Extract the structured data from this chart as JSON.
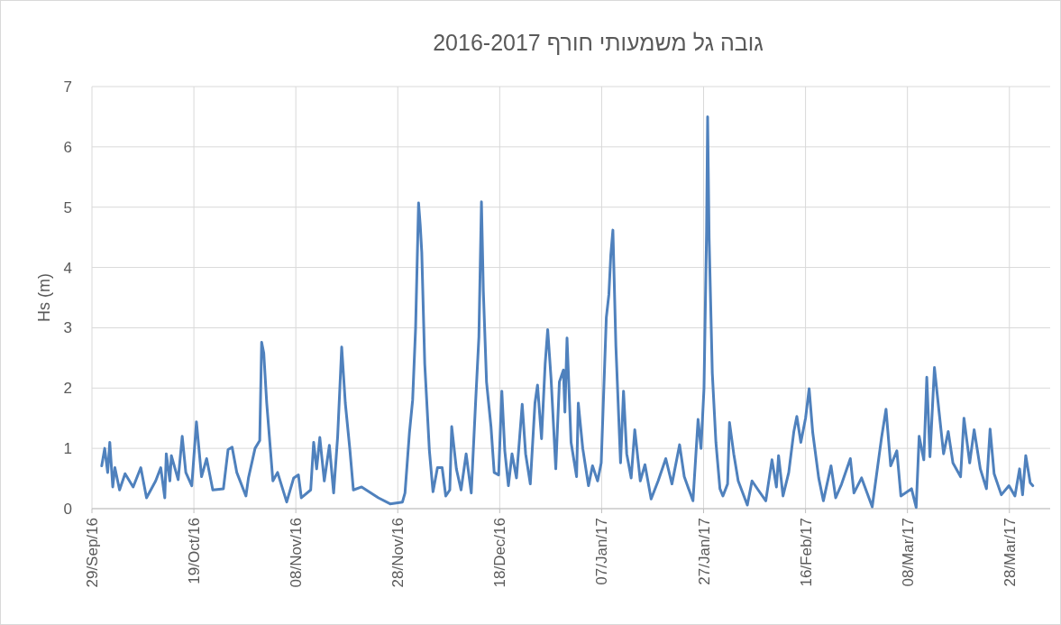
{
  "chart_data": {
    "type": "line",
    "title": "גובה גל משמעותי חורף 2016-2017",
    "ylabel": "Hs (m)",
    "x": [
      "2016-09-30T22:00",
      "2016-10-01T12:00",
      "2016-10-02T02:00",
      "2016-10-02T12:00",
      "2016-10-03T02:00",
      "2016-10-03T12:00",
      "2016-10-04T10:00",
      "2016-10-05T12:00",
      "2016-10-07T02:00",
      "2016-10-08T14:00",
      "2016-10-09T17:00",
      "2016-10-11T12:00",
      "2016-10-12T12:00",
      "2016-10-13T07:00",
      "2016-10-13T14:00",
      "2016-10-14T07:00",
      "2016-10-14T14:00",
      "2016-10-15T22:00",
      "2016-10-16T17:00",
      "2016-10-17T10:00",
      "2016-10-18T14:00",
      "2016-10-19T12:00",
      "2016-10-20T12:00",
      "2016-10-21T12:00",
      "2016-10-22T17:00",
      "2016-10-24T19:00",
      "2016-10-25T17:00",
      "2016-10-26T12:00",
      "2016-10-27T10:00",
      "2016-10-29T05:00",
      "2016-10-29T17:00",
      "2016-10-31T00:00",
      "2016-10-31T22:00",
      "2016-11-01T07:00",
      "2016-11-01T17:00",
      "2016-11-02T07:00",
      "2016-11-03T12:00",
      "2016-11-04T10:00",
      "2016-11-06T05:00",
      "2016-11-07T14:00",
      "2016-11-08T12:00",
      "2016-11-09T02:00",
      "2016-11-10T22:00",
      "2016-11-11T12:00",
      "2016-11-12T02:00",
      "2016-11-12T17:00",
      "2016-11-13T14:00",
      "2016-11-14T14:00",
      "2016-11-15T10:00",
      "2016-11-16T05:00",
      "2016-11-17T00:00",
      "2016-11-17T17:00",
      "2016-11-18T14:00",
      "2016-11-19T07:00",
      "2016-11-20T22:00",
      "2016-11-24T05:00",
      "2016-11-26T12:00",
      "2016-11-28T22:00",
      "2016-11-29T10:00",
      "2016-11-30T07:00",
      "2016-11-30T22:00",
      "2016-12-01T12:00",
      "2016-12-02T02:00",
      "2016-12-02T10:00",
      "2016-12-02T17:00",
      "2016-12-03T07:00",
      "2016-12-04T05:00",
      "2016-12-04T22:00",
      "2016-12-05T19:00",
      "2016-12-06T17:00",
      "2016-12-07T10:00",
      "2016-12-08T05:00",
      "2016-12-08T14:00",
      "2016-12-09T12:00",
      "2016-12-10T10:00",
      "2016-12-11T10:00",
      "2016-12-12T10:00",
      "2016-12-13T07:00",
      "2016-12-13T22:00",
      "2016-12-14T10:00",
      "2016-12-14T19:00",
      "2016-12-15T10:00",
      "2016-12-16T07:00",
      "2016-12-16T22:00",
      "2016-12-17T19:00",
      "2016-12-18T10:00",
      "2016-12-19T00:00",
      "2016-12-19T17:00",
      "2016-12-20T10:00",
      "2016-12-21T07:00",
      "2016-12-22T10:00",
      "2016-12-23T02:00",
      "2016-12-24T00:00",
      "2016-12-24T22:00",
      "2016-12-25T10:00",
      "2016-12-26T05:00",
      "2016-12-26T22:00",
      "2016-12-27T10:00",
      "2016-12-28T02:00",
      "2016-12-29T00:00",
      "2016-12-29T17:00",
      "2016-12-30T12:00",
      "2016-12-30T19:00",
      "2016-12-31T05:00",
      "2017-01-01T00:00",
      "2017-01-02T02:00",
      "2017-01-02T10:00",
      "2017-01-03T07:00",
      "2017-01-04T10:00",
      "2017-01-05T05:00",
      "2017-01-06T05:00",
      "2017-01-06T22:00",
      "2017-01-07T22:00",
      "2017-01-08T10:00",
      "2017-01-08T19:00",
      "2017-01-09T05:00",
      "2017-01-09T19:00",
      "2017-01-10T17:00",
      "2017-01-11T07:00",
      "2017-01-11T22:00",
      "2017-01-12T19:00",
      "2017-01-13T12:00",
      "2017-01-14T14:00",
      "2017-01-15T12:00",
      "2017-01-16T17:00",
      "2017-01-18T02:00",
      "2017-01-19T14:00",
      "2017-01-20T19:00",
      "2017-01-22T07:00",
      "2017-01-23T05:00",
      "2017-01-24T22:00",
      "2017-01-25T22:00",
      "2017-01-26T12:00",
      "2017-01-27T02:00",
      "2017-01-27T14:00",
      "2017-01-27T19:00",
      "2017-01-28T02:00",
      "2017-01-28T17:00",
      "2017-01-29T10:00",
      "2017-01-30T05:00",
      "2017-01-30T19:00",
      "2017-01-31T17:00",
      "2017-02-01T02:00",
      "2017-02-01T22:00",
      "2017-02-02T19:00",
      "2017-02-04T14:00",
      "2017-02-05T12:00",
      "2017-02-06T17:00",
      "2017-02-08T05:00",
      "2017-02-09T10:00",
      "2017-02-10T07:00",
      "2017-02-10T17:00",
      "2017-02-11T14:00",
      "2017-02-12T17:00",
      "2017-02-13T17:00",
      "2017-02-14T07:00",
      "2017-02-15T02:00",
      "2017-02-16T00:00",
      "2017-02-16T17:00",
      "2017-02-17T10:00",
      "2017-02-18T14:00",
      "2017-02-19T12:00",
      "2017-02-21T00:00",
      "2017-02-21T22:00",
      "2017-02-23T02:00",
      "2017-02-24T19:00",
      "2017-02-25T12:00",
      "2017-02-27T00:00",
      "2017-03-01T02:00",
      "2017-03-02T22:00",
      "2017-03-03T19:00",
      "2017-03-04T17:00",
      "2017-03-05T22:00",
      "2017-03-06T17:00",
      "2017-03-08T19:00",
      "2017-03-09T17:00",
      "2017-03-10T07:00",
      "2017-03-11T05:00",
      "2017-03-11T19:00",
      "2017-03-12T10:00",
      "2017-03-13T07:00",
      "2017-03-14T05:00",
      "2017-03-15T02:00",
      "2017-03-16T00:00",
      "2017-03-16T22:00",
      "2017-03-18T10:00",
      "2017-03-19T02:00",
      "2017-03-20T05:00",
      "2017-03-21T02:00",
      "2017-03-22T07:00",
      "2017-03-23T12:00",
      "2017-03-24T05:00",
      "2017-03-25T00:00",
      "2017-03-26T10:00",
      "2017-03-27T22:00",
      "2017-03-29T02:00",
      "2017-03-30T00:00",
      "2017-03-30T14:00",
      "2017-03-31T05:00",
      "2017-04-01T02:00",
      "2017-04-01T14:00"
    ],
    "series": [
      {
        "color": "#4f81bd",
        "values": [
          0.71,
          1.0,
          0.6,
          1.1,
          0.36,
          0.68,
          0.31,
          0.58,
          0.36,
          0.68,
          0.18,
          0.46,
          0.68,
          0.18,
          0.91,
          0.46,
          0.88,
          0.48,
          1.2,
          0.6,
          0.38,
          1.44,
          0.53,
          0.83,
          0.31,
          0.33,
          0.98,
          1.02,
          0.6,
          0.21,
          0.51,
          1.0,
          1.13,
          2.76,
          2.58,
          1.75,
          0.46,
          0.6,
          0.11,
          0.51,
          0.56,
          0.18,
          0.31,
          1.1,
          0.66,
          1.18,
          0.46,
          1.05,
          0.26,
          1.2,
          2.68,
          1.75,
          1.0,
          0.31,
          0.36,
          0.18,
          0.08,
          0.11,
          0.26,
          1.26,
          1.8,
          3.0,
          5.07,
          4.69,
          4.25,
          2.4,
          0.96,
          0.28,
          0.68,
          0.68,
          0.21,
          0.31,
          1.36,
          0.66,
          0.31,
          0.91,
          0.26,
          1.8,
          2.85,
          5.09,
          3.6,
          2.1,
          1.36,
          0.6,
          0.56,
          1.95,
          0.96,
          0.38,
          0.91,
          0.51,
          1.73,
          0.91,
          0.41,
          1.75,
          2.05,
          1.16,
          2.4,
          2.97,
          2.15,
          0.66,
          2.1,
          2.3,
          1.6,
          2.83,
          1.1,
          0.53,
          1.75,
          1.0,
          0.38,
          0.71,
          0.46,
          0.76,
          3.17,
          3.55,
          4.2,
          4.62,
          2.7,
          0.76,
          1.95,
          0.91,
          0.51,
          1.31,
          0.46,
          0.73,
          0.16,
          0.46,
          0.83,
          0.41,
          1.06,
          0.53,
          0.13,
          1.48,
          1.0,
          2.0,
          4.59,
          6.5,
          4.49,
          2.25,
          1.1,
          0.33,
          0.21,
          0.41,
          1.43,
          0.91,
          0.46,
          0.06,
          0.46,
          0.31,
          0.13,
          0.81,
          0.36,
          0.88,
          0.21,
          0.6,
          1.28,
          1.53,
          1.1,
          1.5,
          1.99,
          1.26,
          0.51,
          0.13,
          0.71,
          0.18,
          0.41,
          0.83,
          0.26,
          0.51,
          0.03,
          1.18,
          1.65,
          0.71,
          0.96,
          0.21,
          0.33,
          0.02,
          1.2,
          0.81,
          2.18,
          0.86,
          2.34,
          1.6,
          0.91,
          1.28,
          0.76,
          0.53,
          1.5,
          0.76,
          1.31,
          0.66,
          0.33,
          1.32,
          0.58,
          0.23,
          0.38,
          0.21,
          0.66,
          0.23,
          0.88,
          0.43,
          0.38
        ]
      }
    ],
    "xlim": [
      "2016-09-29",
      "2017-04-05"
    ],
    "xticks": [
      {
        "value": "2016-09-29",
        "label": "29/Sep/16"
      },
      {
        "value": "2016-10-19",
        "label": "19/Oct/16"
      },
      {
        "value": "2016-11-08",
        "label": "08/Nov/16"
      },
      {
        "value": "2016-11-28",
        "label": "28/Nov/16"
      },
      {
        "value": "2016-12-18",
        "label": "18/Dec/16"
      },
      {
        "value": "2017-01-07",
        "label": "07/Jan/17"
      },
      {
        "value": "2017-01-27",
        "label": "27/Jan/17"
      },
      {
        "value": "2017-02-16",
        "label": "16/Feb/17"
      },
      {
        "value": "2017-03-08",
        "label": "08/Mar/17"
      },
      {
        "value": "2017-03-28",
        "label": "28/Mar/17"
      }
    ],
    "ylim": [
      0,
      7
    ],
    "yticks": [
      0,
      1,
      2,
      3,
      4,
      5,
      6,
      7
    ],
    "grid": true
  }
}
